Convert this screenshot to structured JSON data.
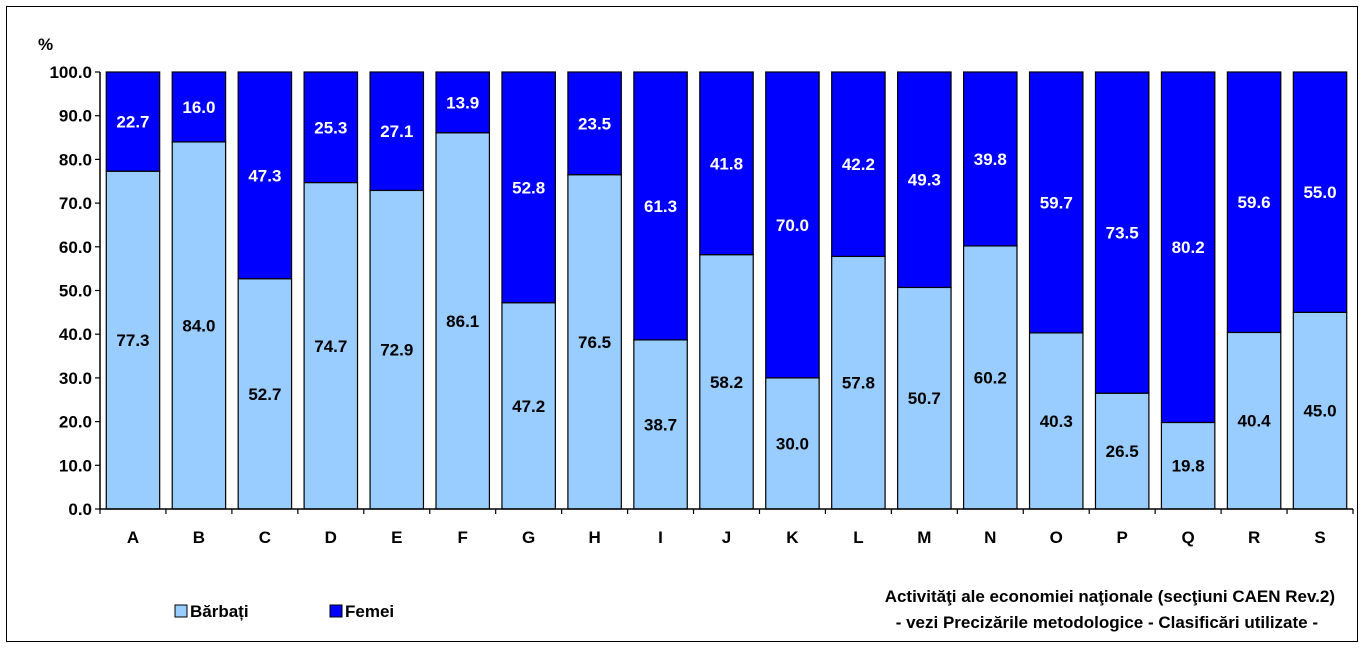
{
  "chart_data": {
    "type": "bar",
    "stacked": true,
    "ylabel": "%",
    "ylim": [
      0,
      100
    ],
    "yticks": [
      "0.0",
      "10.0",
      "20.0",
      "30.0",
      "40.0",
      "50.0",
      "60.0",
      "70.0",
      "80.0",
      "90.0",
      "100.0"
    ],
    "categories": [
      "A",
      "B",
      "C",
      "D",
      "E",
      "F",
      "G",
      "H",
      "I",
      "J",
      "K",
      "L",
      "M",
      "N",
      "O",
      "P",
      "Q",
      "R",
      "S"
    ],
    "series": [
      {
        "name": "Bărbați",
        "color": "#99ccff",
        "values": [
          77.3,
          84.0,
          52.7,
          74.7,
          72.9,
          86.1,
          47.2,
          76.5,
          38.7,
          58.2,
          30.0,
          57.8,
          50.7,
          60.2,
          40.3,
          26.5,
          19.8,
          40.4,
          45.0
        ],
        "labels": [
          "77.3",
          "84.0",
          "52.7",
          "74.7",
          "72.9",
          "86.1",
          "47.2",
          "76.5",
          "38.7",
          "58.2",
          "30.0",
          "57.8",
          "50.7",
          "60.2",
          "40.3",
          "26.5",
          "19.8",
          "40.4",
          "45.0"
        ]
      },
      {
        "name": "Femei",
        "color": "#0000ff",
        "values": [
          22.7,
          16.0,
          47.3,
          25.3,
          27.1,
          13.9,
          52.8,
          23.5,
          61.3,
          41.8,
          70.0,
          42.2,
          49.3,
          39.8,
          59.7,
          73.5,
          80.2,
          59.6,
          55.0
        ],
        "labels": [
          "22.7",
          "16.0",
          "47.3",
          "25.3",
          "27.1",
          "13.9",
          "52.8",
          "23.5",
          "61.3",
          "41.8",
          "70.0",
          "42.2",
          "49.3",
          "39.8",
          "59.7",
          "73.5",
          "80.2",
          "59.6",
          "55.0"
        ]
      }
    ],
    "xlabel_line1": "Activităţi ale economiei naţionale (secţiuni CAEN Rev.2)",
    "xlabel_line2": "- vezi Precizările metodologice - Clasificări utilizate -",
    "legend_position": "bottom-left",
    "grid": false
  }
}
